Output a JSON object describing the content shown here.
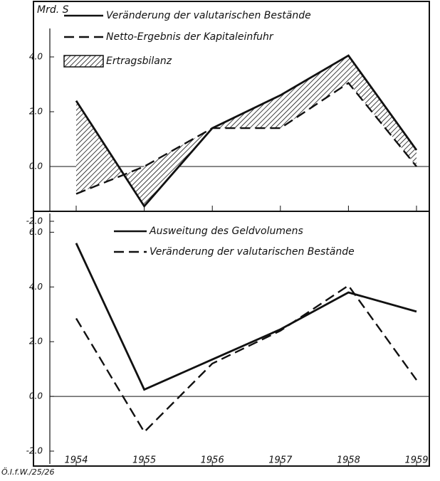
{
  "chart_data": [
    {
      "type": "line",
      "ylabel": "Mrd. S",
      "categories": [
        "1954",
        "1955",
        "1956",
        "1957",
        "1958",
        "1959"
      ],
      "ylim": [
        -2.0,
        6.0
      ],
      "yticks": [
        {
          "value": -2,
          "label": "-2.0"
        },
        {
          "value": 0,
          "label": "0.0"
        },
        {
          "value": 2,
          "label": "2.0"
        },
        {
          "value": 4,
          "label": "4.0"
        }
      ],
      "series": [
        {
          "name": "Veränderung der valutarischen Bestände",
          "color": "#111111",
          "style": "solid",
          "values": [
            2.4,
            -1.45,
            1.4,
            2.6,
            4.05,
            0.6
          ]
        },
        {
          "name": "Netto-Ergebnis der Kapitaleinfuhr",
          "color": "#111111",
          "style": "dashed",
          "values": [
            -1.0,
            0.0,
            1.4,
            1.4,
            3.05,
            0.0
          ]
        },
        {
          "name": "Ertragsbilanz",
          "color": "#111111",
          "style": "hatched",
          "values": [
            3.4,
            -1.45,
            0.0,
            1.2,
            1.0,
            0.6
          ]
        }
      ]
    },
    {
      "type": "line",
      "source": "Ö.I.f.W./25/26",
      "categories": [
        "1954",
        "1955",
        "1956",
        "1957",
        "1958",
        "1959"
      ],
      "ylim": [
        -2.0,
        6.4
      ],
      "yticks": [
        {
          "value": -2,
          "label": "-2.0"
        },
        {
          "value": 0,
          "label": "0.0"
        },
        {
          "value": 2,
          "label": "2.0"
        },
        {
          "value": 4,
          "label": "4.0"
        },
        {
          "value": 6,
          "label": "6.0"
        }
      ],
      "series": [
        {
          "name": "Ausweitung des Geldvolumens",
          "color": "#111111",
          "style": "solid",
          "values": [
            5.6,
            0.25,
            1.35,
            2.45,
            3.8,
            3.1
          ]
        },
        {
          "name": "Veränderung der valutarischen Bestände",
          "color": "#111111",
          "style": "dashed",
          "values": [
            2.85,
            -1.3,
            1.2,
            2.4,
            4.05,
            0.6
          ]
        }
      ]
    }
  ]
}
